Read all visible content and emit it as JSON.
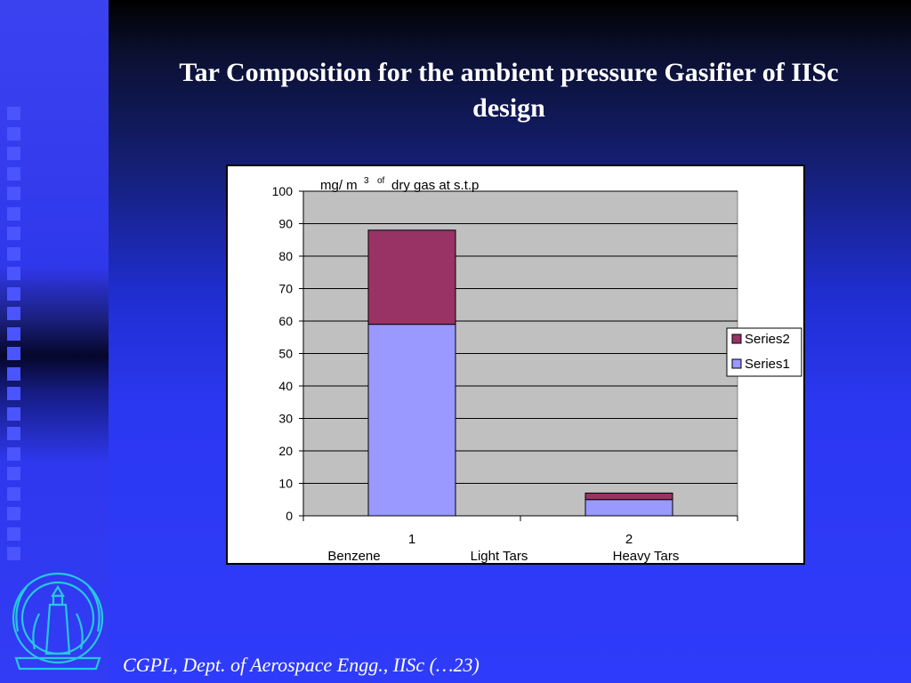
{
  "slide": {
    "title": "Tar Composition for the ambient pressure Gasifier of IISc design",
    "footer": "CGPL, Dept. of Aerospace Engg., IISc (…23)"
  },
  "chart_data": {
    "type": "bar",
    "stacked": true,
    "unit_label": {
      "pre": "mg/ m",
      "sup1": "3",
      "sup2": "of",
      "post": "dry gas at s.t.p"
    },
    "categories": [
      "1",
      "2"
    ],
    "category_labels": [
      "Benzene",
      "Light Tars",
      "Heavy Tars"
    ],
    "series": [
      {
        "name": "Series1",
        "values": [
          59,
          5
        ],
        "color": "#9999ff"
      },
      {
        "name": "Series2",
        "values": [
          29,
          2
        ],
        "color": "#993366"
      }
    ],
    "ylim": [
      0,
      100
    ],
    "yticks": [
      "0",
      "10",
      "20",
      "30",
      "40",
      "50",
      "60",
      "70",
      "80",
      "90",
      "100"
    ],
    "legend": [
      "Series2",
      "Series1"
    ],
    "grid": true,
    "legend_position": "right"
  }
}
